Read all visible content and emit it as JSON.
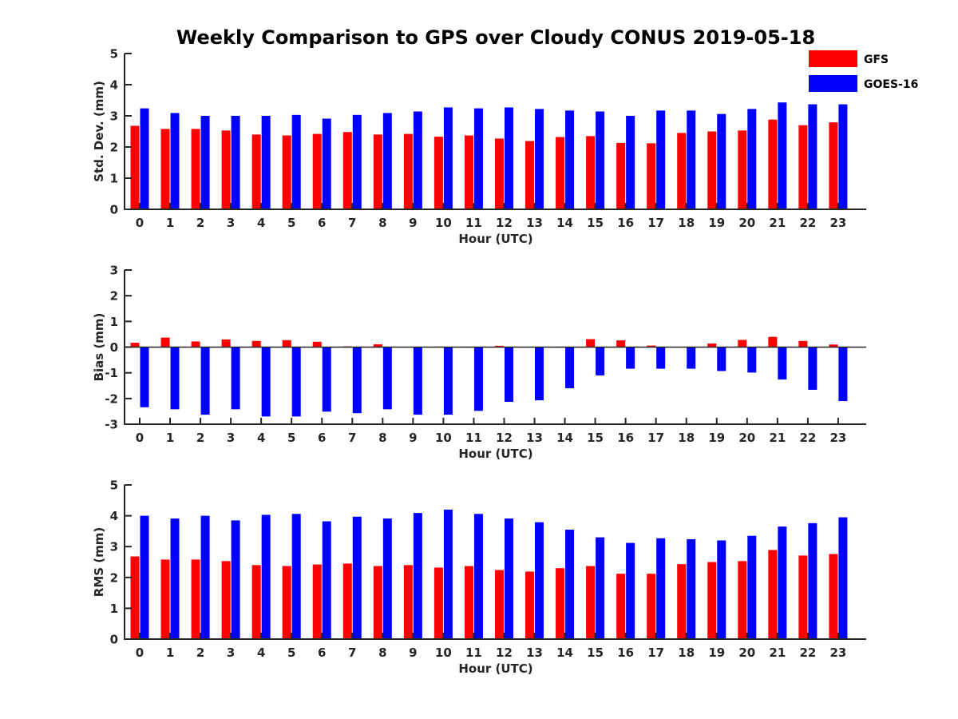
{
  "title": "Weekly Comparison to GPS over Cloudy CONUS 2019-05-18",
  "colors": {
    "GFS": "#ff0000",
    "GOES-16": "#0000ff"
  },
  "legend": {
    "items": [
      "GFS",
      "GOES-16"
    ],
    "placement": "top-right"
  },
  "chart_data": [
    {
      "type": "bar",
      "categories": [
        "0",
        "1",
        "2",
        "3",
        "4",
        "5",
        "6",
        "7",
        "8",
        "9",
        "10",
        "11",
        "12",
        "13",
        "14",
        "15",
        "16",
        "17",
        "18",
        "19",
        "20",
        "21",
        "22",
        "23"
      ],
      "xlabel": "Hour (UTC)",
      "ylabel": "Std. Dev. (mm)",
      "ylim": [
        0,
        5
      ],
      "yticks": [
        0,
        1,
        2,
        3,
        4,
        5
      ],
      "grid": false,
      "series": [
        {
          "name": "GFS",
          "values": [
            2.68,
            2.58,
            2.58,
            2.53,
            2.4,
            2.37,
            2.42,
            2.48,
            2.4,
            2.42,
            2.33,
            2.37,
            2.27,
            2.19,
            2.32,
            2.35,
            2.13,
            2.12,
            2.45,
            2.5,
            2.53,
            2.88,
            2.7,
            2.79
          ]
        },
        {
          "name": "GOES-16",
          "values": [
            3.24,
            3.09,
            3.0,
            3.0,
            3.0,
            3.03,
            2.91,
            3.03,
            3.09,
            3.14,
            3.27,
            3.24,
            3.27,
            3.22,
            3.17,
            3.14,
            3.0,
            3.17,
            3.17,
            3.06,
            3.22,
            3.43,
            3.37,
            3.37
          ]
        }
      ]
    },
    {
      "type": "bar",
      "categories": [
        "0",
        "1",
        "2",
        "3",
        "4",
        "5",
        "6",
        "7",
        "8",
        "9",
        "10",
        "11",
        "12",
        "13",
        "14",
        "15",
        "16",
        "17",
        "18",
        "19",
        "20",
        "21",
        "22",
        "23"
      ],
      "xlabel": "Hour (UTC)",
      "ylabel": "Bias (mm)",
      "ylim": [
        -3,
        3
      ],
      "yticks": [
        -3,
        -2,
        -1,
        0,
        1,
        2,
        3
      ],
      "grid": false,
      "series": [
        {
          "name": "GFS",
          "values": [
            0.17,
            0.37,
            0.22,
            0.3,
            0.24,
            0.27,
            0.21,
            0.03,
            0.11,
            0.01,
            0.02,
            -0.02,
            0.05,
            -0.01,
            -0.02,
            0.31,
            0.26,
            0.06,
            -0.01,
            0.14,
            0.28,
            0.4,
            0.24,
            0.1
          ]
        },
        {
          "name": "GOES-16",
          "values": [
            -2.34,
            -2.42,
            -2.63,
            -2.42,
            -2.7,
            -2.7,
            -2.51,
            -2.57,
            -2.42,
            -2.63,
            -2.63,
            -2.48,
            -2.13,
            -2.07,
            -1.6,
            -1.1,
            -0.84,
            -0.84,
            -0.84,
            -0.93,
            -0.99,
            -1.26,
            -1.66,
            -2.1
          ]
        }
      ]
    },
    {
      "type": "bar",
      "categories": [
        "0",
        "1",
        "2",
        "3",
        "4",
        "5",
        "6",
        "7",
        "8",
        "9",
        "10",
        "11",
        "12",
        "13",
        "14",
        "15",
        "16",
        "17",
        "18",
        "19",
        "20",
        "21",
        "22",
        "23"
      ],
      "xlabel": "Hour (UTC)",
      "ylabel": "RMS (mm)",
      "ylim": [
        0,
        5
      ],
      "yticks": [
        0,
        1,
        2,
        3,
        4,
        5
      ],
      "grid": false,
      "series": [
        {
          "name": "GFS",
          "values": [
            2.68,
            2.58,
            2.58,
            2.53,
            2.4,
            2.37,
            2.42,
            2.45,
            2.37,
            2.4,
            2.32,
            2.37,
            2.24,
            2.19,
            2.3,
            2.37,
            2.12,
            2.12,
            2.43,
            2.5,
            2.53,
            2.89,
            2.71,
            2.76
          ]
        },
        {
          "name": "GOES-16",
          "values": [
            4.0,
            3.91,
            4.0,
            3.85,
            4.03,
            4.06,
            3.82,
            3.97,
            3.91,
            4.09,
            4.2,
            4.06,
            3.91,
            3.79,
            3.55,
            3.3,
            3.12,
            3.27,
            3.24,
            3.2,
            3.35,
            3.65,
            3.76,
            3.95
          ]
        }
      ]
    }
  ]
}
